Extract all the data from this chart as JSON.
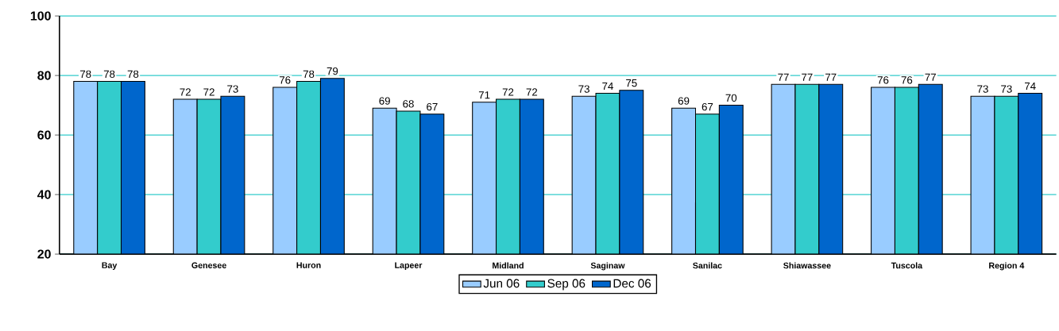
{
  "chart_data": {
    "type": "bar",
    "categories": [
      "Bay",
      "Genesee",
      "Huron",
      "Lapeer",
      "Midland",
      "Saginaw",
      "Sanilac",
      "Shiawassee",
      "Tuscola",
      "Region 4"
    ],
    "series": [
      {
        "name": "Jun 06",
        "color": "#99ccff",
        "values": [
          78,
          72,
          76,
          69,
          71,
          73,
          69,
          77,
          76,
          73
        ]
      },
      {
        "name": "Sep 06",
        "color": "#33cccc",
        "values": [
          78,
          72,
          78,
          68,
          72,
          74,
          67,
          77,
          76,
          73
        ]
      },
      {
        "name": "Dec 06",
        "color": "#0066cc",
        "values": [
          78,
          73,
          79,
          67,
          72,
          75,
          70,
          77,
          77,
          74
        ]
      }
    ],
    "ylim": [
      20,
      100
    ],
    "yticks": [
      20,
      40,
      60,
      80,
      100
    ],
    "grid": "y",
    "legend": "bottom",
    "data_labels": true
  }
}
